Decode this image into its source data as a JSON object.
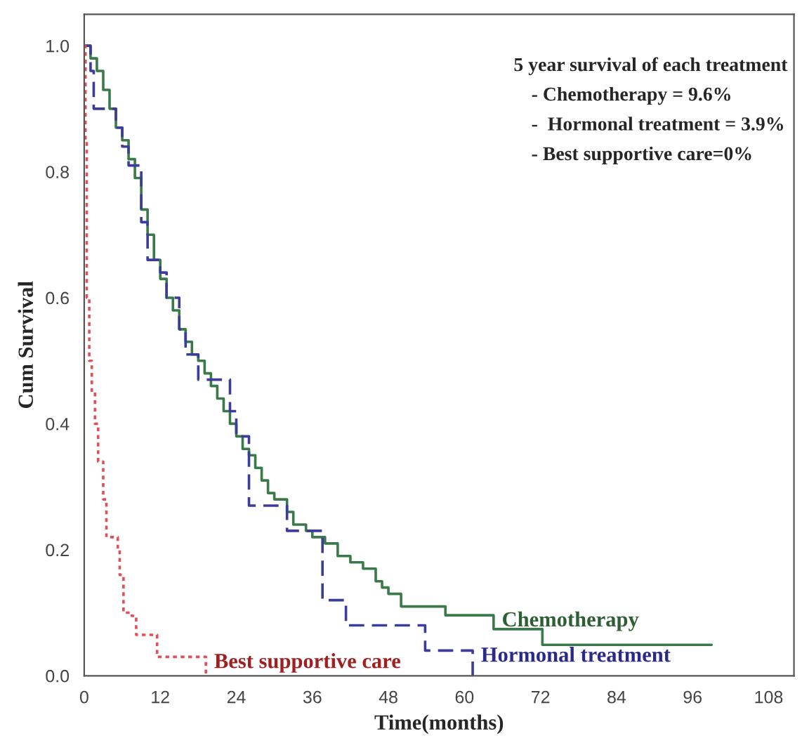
{
  "chart_data": {
    "type": "step",
    "xlabel": "Time(months)",
    "ylabel": "Cum Survival",
    "annotations": [
      "5 year survival of each treatment",
      "- Chemotherapy = 9.6%",
      "-  Hormonal treatment = 3.9%",
      "- Best supportive care=0%"
    ],
    "series": [
      {
        "name": "Chemotherapy",
        "color": "#3a7a4a",
        "line_style": "solid",
        "x": [
          0,
          1,
          2,
          3,
          4,
          5,
          6,
          7,
          8,
          9,
          10,
          11,
          12,
          13,
          14,
          15,
          16,
          17,
          18,
          19,
          20,
          21,
          22,
          23,
          24,
          25,
          26,
          27,
          28,
          29,
          30,
          32,
          33,
          35,
          36,
          38,
          40,
          42,
          44,
          46,
          47,
          48,
          50,
          57,
          64.6,
          72.3,
          99
        ],
        "values": [
          1.0,
          0.98,
          0.96,
          0.93,
          0.9,
          0.87,
          0.85,
          0.82,
          0.79,
          0.74,
          0.7,
          0.66,
          0.63,
          0.6,
          0.58,
          0.55,
          0.53,
          0.51,
          0.5,
          0.48,
          0.46,
          0.44,
          0.42,
          0.4,
          0.38,
          0.36,
          0.35,
          0.33,
          0.31,
          0.29,
          0.28,
          0.26,
          0.24,
          0.23,
          0.22,
          0.21,
          0.19,
          0.18,
          0.17,
          0.15,
          0.14,
          0.13,
          0.11,
          0.096,
          0.074,
          0.049,
          0.049
        ]
      },
      {
        "name": "Hormonal treatment",
        "color": "#3c3c9c",
        "line_style": "dashed",
        "x": [
          0,
          1,
          1.5,
          5,
          6,
          7,
          9,
          10,
          12,
          13,
          15,
          16,
          18,
          23,
          24,
          26,
          32,
          37.6,
          41.3,
          53.8,
          61.3
        ],
        "values": [
          1.0,
          0.96,
          0.9,
          0.87,
          0.84,
          0.81,
          0.72,
          0.66,
          0.64,
          0.6,
          0.55,
          0.51,
          0.47,
          0.42,
          0.38,
          0.27,
          0.23,
          0.12,
          0.08,
          0.04,
          0.0
        ]
      },
      {
        "name": "Best supportive care",
        "color": "#e0505a",
        "line_style": "dotted",
        "x": [
          0,
          0.2,
          0.4,
          0.8,
          1.2,
          1.7,
          2.2,
          3.0,
          3.5,
          5.3,
          5.6,
          6.2,
          7.5,
          8.2,
          11.5,
          19.2
        ],
        "values": [
          1.0,
          0.85,
          0.6,
          0.5,
          0.45,
          0.4,
          0.34,
          0.28,
          0.22,
          0.2,
          0.16,
          0.1,
          0.095,
          0.065,
          0.03,
          0.0
        ]
      }
    ],
    "xlim": [
      0,
      112
    ],
    "ylim": [
      0,
      1.05
    ],
    "xticks": [
      0,
      12,
      24,
      36,
      48,
      60,
      72,
      84,
      96,
      108
    ],
    "yticks": [
      {
        "value": 0,
        "label": "0.0"
      },
      {
        "value": 0.2,
        "label": "0.2"
      },
      {
        "value": 0.4,
        "label": "0.4"
      },
      {
        "value": 0.6,
        "label": "0.6"
      },
      {
        "value": 0.8,
        "label": "0.8"
      },
      {
        "value": 1.0,
        "label": "1.0"
      }
    ],
    "grid": false,
    "legend": false
  }
}
